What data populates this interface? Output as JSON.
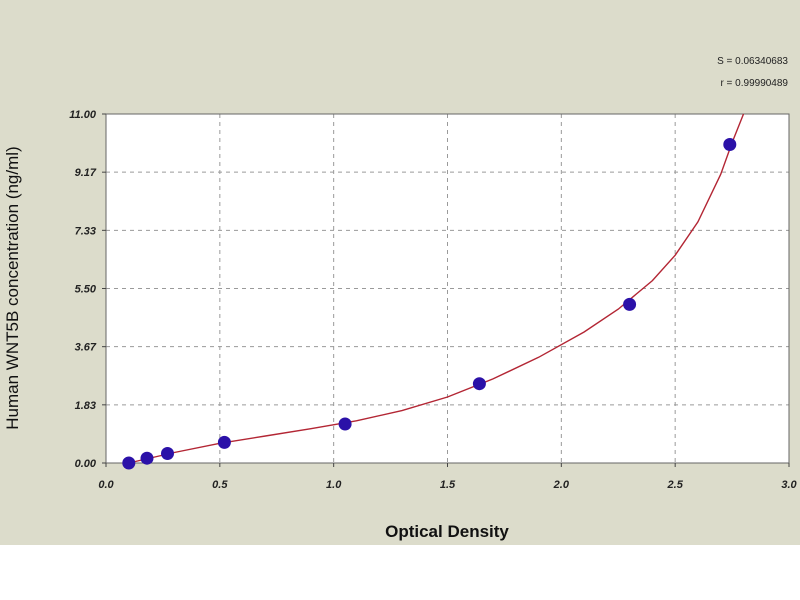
{
  "colors": {
    "background": "#ffffff",
    "chart_area": "#dcdccb",
    "plot_area": "#ffffff",
    "curve": "#b32634",
    "points": "#2b11a8",
    "grid": "#9a9a9a"
  },
  "chart_data": {
    "type": "scatter",
    "title": "",
    "xlabel": "Optical Density",
    "ylabel": "Human  WNT5B concentration (ng/ml)",
    "xlim": [
      0,
      3
    ],
    "ylim": [
      0,
      11
    ],
    "x_ticks": [
      "0.0",
      "0.5",
      "1.0",
      "1.5",
      "2.0",
      "2.5",
      "3.0"
    ],
    "y_ticks": [
      "0.00",
      "1.83",
      "3.67",
      "5.50",
      "7.33",
      "9.17",
      "11.00"
    ],
    "grid": "dashed",
    "stats": [
      "S = 0.06340683",
      "r = 0.99990489"
    ],
    "series": [
      {
        "type": "scatter",
        "x": [
          0.1,
          0.18,
          0.27,
          0.52,
          1.05,
          1.64,
          2.3,
          2.74
        ],
        "y": [
          0.0,
          0.15,
          0.3,
          0.65,
          1.23,
          2.5,
          5.0,
          10.04
        ]
      }
    ],
    "fit_curve": {
      "x": [
        0.1,
        0.3,
        0.5,
        0.7,
        0.9,
        1.1,
        1.3,
        1.5,
        1.7,
        1.9,
        2.1,
        2.25,
        2.4,
        2.5,
        2.6,
        2.7,
        2.75,
        2.8
      ],
      "y": [
        0.0,
        0.33,
        0.62,
        0.85,
        1.08,
        1.33,
        1.65,
        2.08,
        2.65,
        3.33,
        4.13,
        4.85,
        5.75,
        6.55,
        7.6,
        9.1,
        10.1,
        11.0
      ]
    }
  }
}
